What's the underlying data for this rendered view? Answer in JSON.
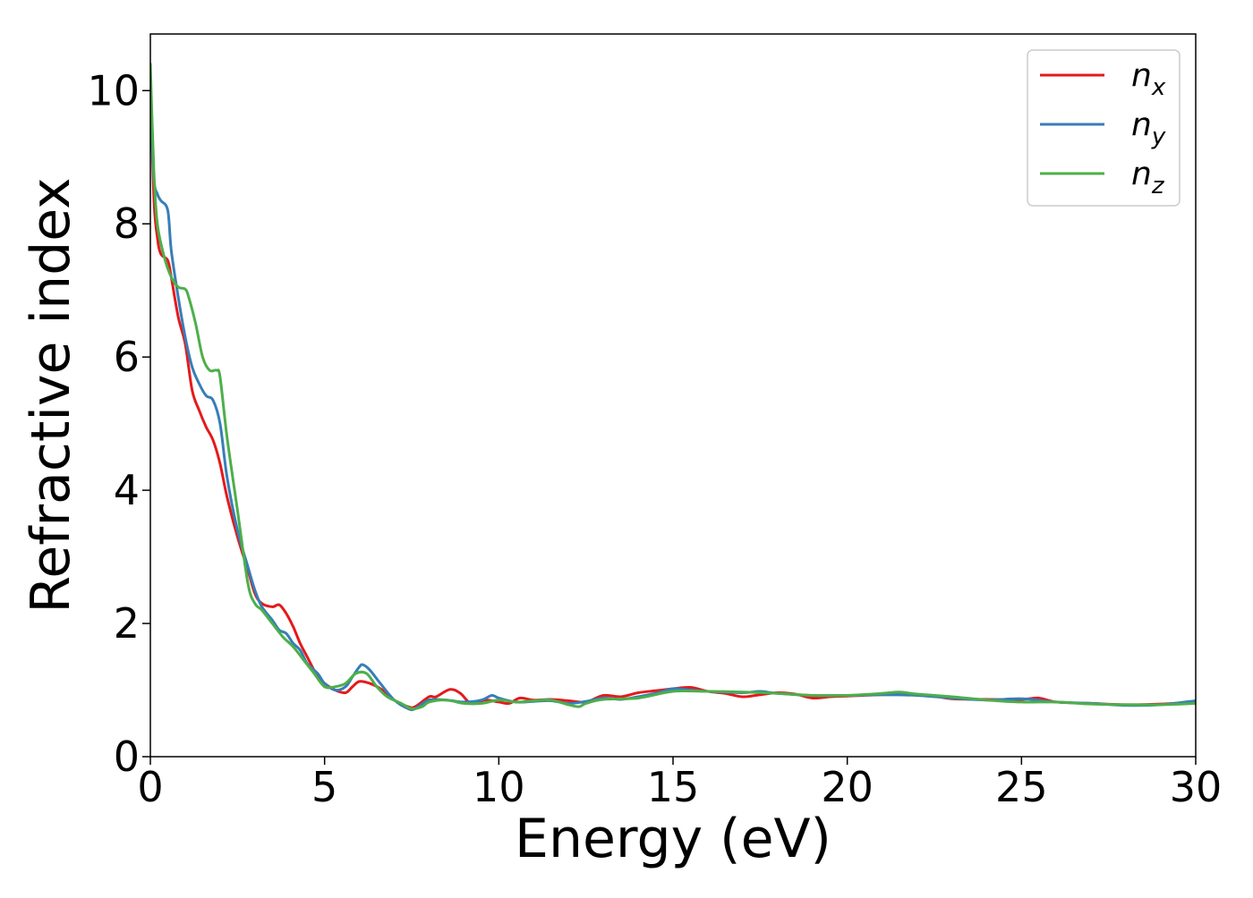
{
  "chart_data": {
    "type": "line",
    "title": "",
    "xlabel": "Energy (eV)",
    "ylabel": "Refractive index",
    "xlim": [
      0,
      30
    ],
    "ylim": [
      0,
      10.85
    ],
    "xticks": [
      0,
      5,
      10,
      15,
      20,
      25,
      30
    ],
    "yticks": [
      0,
      2,
      4,
      6,
      8,
      10
    ],
    "grid": false,
    "legend": {
      "location": "top-right"
    },
    "series": [
      {
        "name": "n",
        "subscript": "x",
        "color": "#e41a1c",
        "x": [
          0,
          0.1,
          0.2,
          0.3,
          0.5,
          0.6,
          0.8,
          1.0,
          1.2,
          1.4,
          1.6,
          1.8,
          2.0,
          2.2,
          2.5,
          2.8,
          3.0,
          3.2,
          3.5,
          3.7,
          3.9,
          4.1,
          4.3,
          4.5,
          4.8,
          5.0,
          5.3,
          5.6,
          5.8,
          6.0,
          6.3,
          6.6,
          7.0,
          7.4,
          7.6,
          8.0,
          8.2,
          8.6,
          8.9,
          9.2,
          9.6,
          10.0,
          10.3,
          10.6,
          11.0,
          11.5,
          12.0,
          12.5,
          13.0,
          13.5,
          14.0,
          14.5,
          15.0,
          15.5,
          16.0,
          16.5,
          17.0,
          17.5,
          18.0,
          18.5,
          19.0,
          19.5,
          20.0,
          21.0,
          22.0,
          22.5,
          23.0,
          24.0,
          25.0,
          25.5,
          26.0,
          27.0,
          28.0,
          29.0,
          30.0
        ],
        "y": [
          10.2,
          8.4,
          7.8,
          7.55,
          7.45,
          7.2,
          6.6,
          6.2,
          5.5,
          5.2,
          4.95,
          4.75,
          4.4,
          3.9,
          3.3,
          2.8,
          2.45,
          2.3,
          2.25,
          2.28,
          2.15,
          1.95,
          1.7,
          1.5,
          1.2,
          1.1,
          1.0,
          0.96,
          1.05,
          1.13,
          1.1,
          1.02,
          0.85,
          0.75,
          0.75,
          0.9,
          0.9,
          1.01,
          0.95,
          0.8,
          0.85,
          0.82,
          0.8,
          0.88,
          0.85,
          0.86,
          0.84,
          0.82,
          0.92,
          0.9,
          0.96,
          0.99,
          1.02,
          1.04,
          0.98,
          0.95,
          0.9,
          0.93,
          0.96,
          0.94,
          0.88,
          0.9,
          0.91,
          0.93,
          0.93,
          0.91,
          0.87,
          0.86,
          0.86,
          0.88,
          0.82,
          0.8,
          0.78,
          0.79,
          0.82
        ]
      },
      {
        "name": "n",
        "subscript": "y",
        "color": "#377eb8",
        "x": [
          0,
          0.1,
          0.2,
          0.3,
          0.5,
          0.6,
          0.8,
          1.0,
          1.2,
          1.4,
          1.6,
          1.8,
          2.0,
          2.2,
          2.5,
          2.8,
          3.0,
          3.2,
          3.5,
          3.7,
          3.9,
          4.1,
          4.3,
          4.5,
          4.8,
          5.0,
          5.3,
          5.6,
          5.8,
          6.0,
          6.1,
          6.3,
          6.6,
          7.0,
          7.4,
          7.6,
          8.0,
          8.5,
          9.0,
          9.5,
          9.8,
          10.0,
          10.5,
          11.0,
          11.5,
          12.0,
          12.5,
          13.0,
          13.5,
          14.0,
          14.5,
          15.0,
          15.5,
          16.0,
          17.0,
          17.5,
          18.0,
          19.0,
          20.0,
          21.0,
          22.0,
          23.0,
          24.0,
          25.0,
          26.0,
          27.0,
          28.0,
          29.0,
          30.0
        ],
        "y": [
          9.9,
          8.7,
          8.45,
          8.35,
          8.2,
          7.6,
          6.9,
          6.3,
          5.85,
          5.6,
          5.42,
          5.35,
          5.0,
          4.2,
          3.4,
          2.85,
          2.5,
          2.25,
          2.05,
          1.9,
          1.85,
          1.7,
          1.6,
          1.4,
          1.25,
          1.1,
          1.0,
          1.05,
          1.2,
          1.35,
          1.38,
          1.3,
          1.1,
          0.85,
          0.72,
          0.72,
          0.85,
          0.85,
          0.82,
          0.85,
          0.92,
          0.88,
          0.82,
          0.83,
          0.84,
          0.8,
          0.83,
          0.88,
          0.86,
          0.9,
          0.95,
          1.02,
          1.0,
          0.98,
          0.96,
          0.98,
          0.95,
          0.92,
          0.92,
          0.93,
          0.92,
          0.88,
          0.85,
          0.87,
          0.82,
          0.8,
          0.77,
          0.78,
          0.84
        ]
      },
      {
        "name": "n",
        "subscript": "z",
        "color": "#4daf4a",
        "x": [
          0,
          0.1,
          0.2,
          0.4,
          0.6,
          0.8,
          1.0,
          1.1,
          1.3,
          1.5,
          1.7,
          1.9,
          2.0,
          2.2,
          2.5,
          2.8,
          3.0,
          3.2,
          3.5,
          3.8,
          4.1,
          4.4,
          4.7,
          5.0,
          5.3,
          5.6,
          5.9,
          6.2,
          6.5,
          6.8,
          7.2,
          7.5,
          7.8,
          8.0,
          8.5,
          9.0,
          9.5,
          10.0,
          10.5,
          11.0,
          11.5,
          12.0,
          12.3,
          12.5,
          13.0,
          14.0,
          15.0,
          16.0,
          17.0,
          18.0,
          19.0,
          20.0,
          21.0,
          21.5,
          22.0,
          23.0,
          24.0,
          25.0,
          26.0,
          27.0,
          28.0,
          29.0,
          30.0
        ],
        "y": [
          10.4,
          8.8,
          8.0,
          7.5,
          7.2,
          7.05,
          7.02,
          6.9,
          6.5,
          6.0,
          5.8,
          5.8,
          5.7,
          4.8,
          3.7,
          2.6,
          2.3,
          2.2,
          2.0,
          1.8,
          1.65,
          1.45,
          1.25,
          1.05,
          1.05,
          1.1,
          1.25,
          1.25,
          1.05,
          0.9,
          0.8,
          0.72,
          0.75,
          0.82,
          0.85,
          0.8,
          0.8,
          0.85,
          0.82,
          0.84,
          0.85,
          0.78,
          0.75,
          0.8,
          0.86,
          0.88,
          0.98,
          0.98,
          0.97,
          0.95,
          0.92,
          0.92,
          0.95,
          0.97,
          0.94,
          0.9,
          0.85,
          0.82,
          0.82,
          0.79,
          0.78,
          0.78,
          0.8
        ]
      }
    ]
  }
}
